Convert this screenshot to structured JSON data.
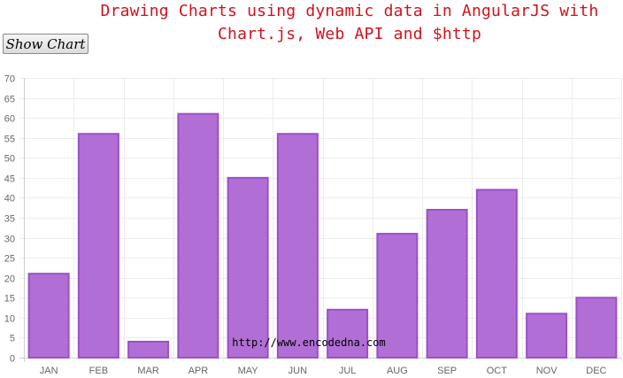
{
  "header": {
    "title_line1": "Drawing Charts using dynamic data in AngularJS with",
    "title_line2": "Chart.js, Web API and $http"
  },
  "toolbar": {
    "show_chart_label": "Show Chart"
  },
  "watermark": "http://www.encodedna.com",
  "chart_data": {
    "type": "bar",
    "categories": [
      "JAN",
      "FEB",
      "MAR",
      "APR",
      "MAY",
      "JUN",
      "JUL",
      "AUG",
      "SEP",
      "OCT",
      "NOV",
      "DEC"
    ],
    "values": [
      21,
      56,
      4,
      61,
      45,
      56,
      12,
      31,
      37,
      42,
      11,
      15
    ],
    "ylim": [
      0,
      70
    ],
    "ytick_step": 5,
    "grid": true,
    "bar_fill": "#b16fd6",
    "bar_stroke": "#9c4fc8"
  }
}
